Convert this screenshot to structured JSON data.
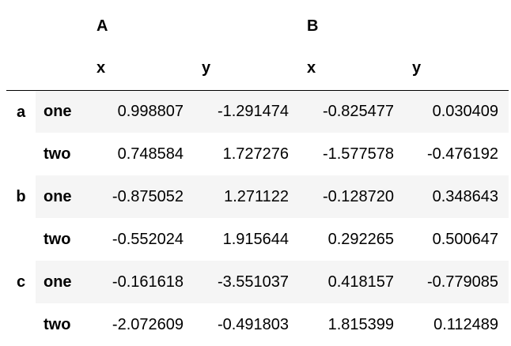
{
  "table": {
    "columns": {
      "level0": [
        "A",
        "B"
      ],
      "level1": [
        "x",
        "y",
        "x",
        "y"
      ]
    },
    "index": {
      "level0": [
        "a",
        "b",
        "c"
      ],
      "level1": [
        "one",
        "two",
        "one",
        "two",
        "one",
        "two"
      ]
    },
    "rows": [
      [
        "0.998807",
        "-1.291474",
        "-0.825477",
        "0.030409"
      ],
      [
        "0.748584",
        "1.727276",
        "-1.577578",
        "-0.476192"
      ],
      [
        "-0.875052",
        "1.271122",
        "-0.128720",
        "0.348643"
      ],
      [
        "-0.552024",
        "1.915644",
        "0.292265",
        "0.500647"
      ],
      [
        "-0.161618",
        "-3.551037",
        "0.418157",
        "-0.779085"
      ],
      [
        "-2.072609",
        "-0.491803",
        "1.815399",
        "0.112489"
      ]
    ]
  }
}
